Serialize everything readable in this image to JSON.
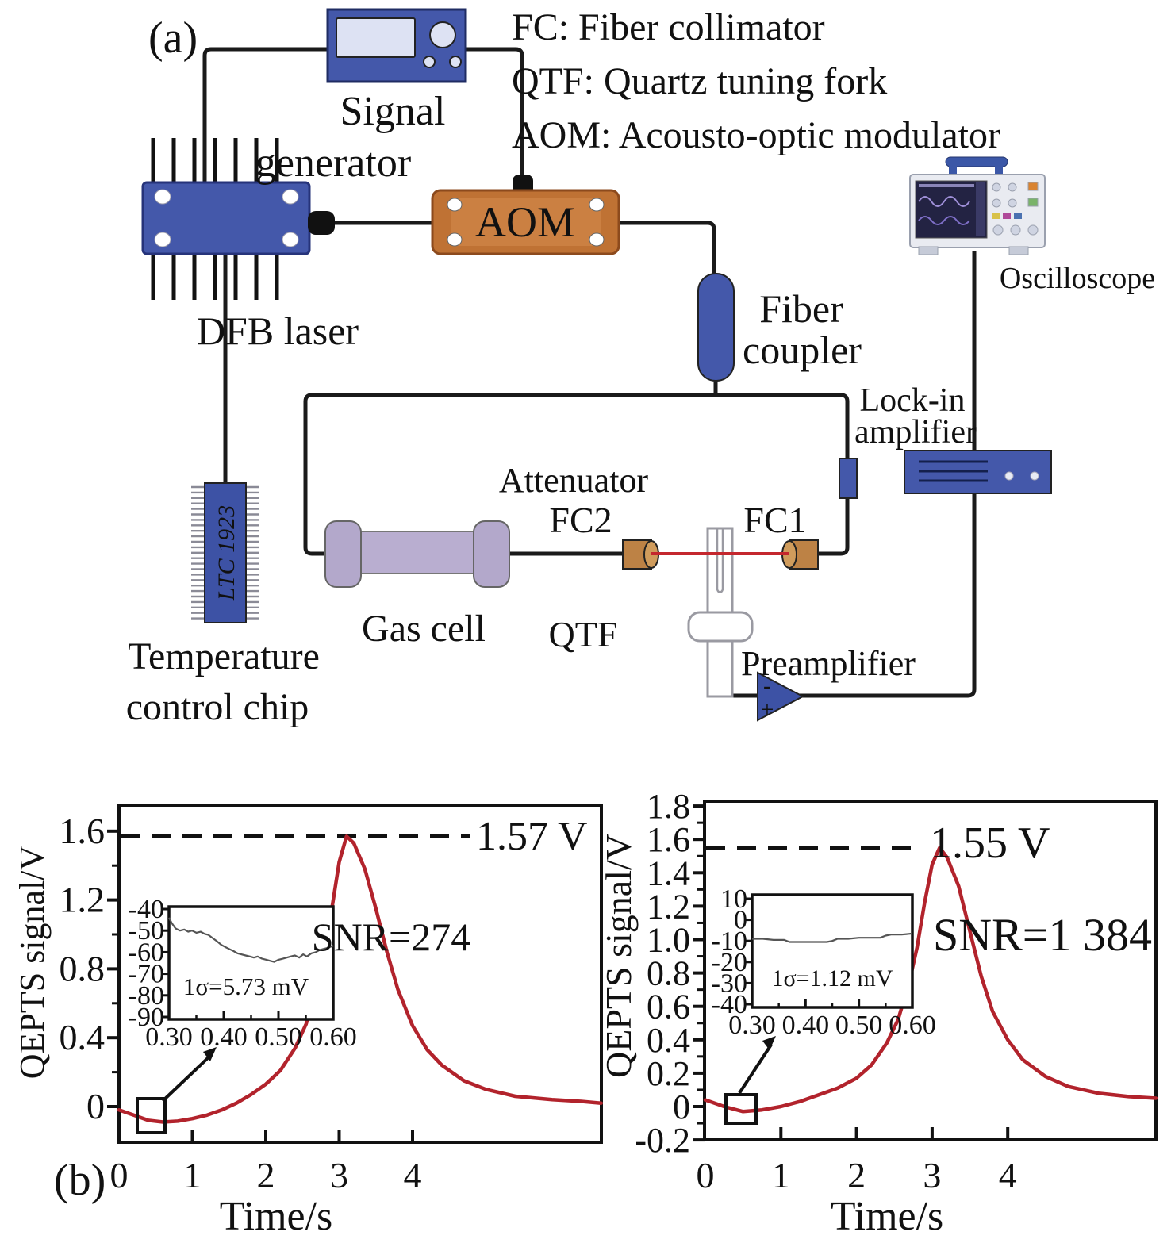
{
  "figure": {
    "panel_a": "(a)",
    "panel_b": "(b)"
  },
  "legend": {
    "lines": [
      "FC: Fiber collimator",
      "QTF: Quartz tuning fork",
      "AOM: Acousto-optic modulator"
    ]
  },
  "diagram": {
    "labels": {
      "signal_generator_1": "Signal",
      "signal_generator_2": "generator",
      "dfb_laser": "DFB laser",
      "aom": "AOM",
      "fiber_coupler_1": "Fiber",
      "fiber_coupler_2": "coupler",
      "oscilloscope": "Oscilloscope",
      "lock_in_1": "Lock-in",
      "lock_in_2": "amplifier",
      "attenuator": "Attenuator",
      "fc2": "FC2",
      "fc1": "FC1",
      "qtf": "QTF",
      "gas_cell": "Gas cell",
      "preamplifier": "Preamplifier",
      "temperature_1": "Temperature",
      "temperature_2": "control chip",
      "chip_text": "LTC 1923",
      "preamp_minus": "-",
      "preamp_plus": "+"
    },
    "colors": {
      "device_blue": "#4458aa",
      "aom_orange": "#bf7234",
      "gas_lavender": "#b6abce",
      "collimator_brown": "#bd8245",
      "beam_red": "#c4272e",
      "wire_black": "#1a1a1a"
    }
  },
  "chart_data": [
    {
      "type": "line",
      "title": "",
      "xlabel": "Time/s",
      "ylabel": "QEPTS signal/V",
      "xlim": [
        0,
        6.57
      ],
      "ylim": [
        -0.21,
        1.75
      ],
      "xticks": [
        0,
        1,
        2,
        3,
        4
      ],
      "xtick_labels": [
        "0",
        "1",
        "2",
        "3",
        "4"
      ],
      "yticks": [
        0,
        0.4,
        0.8,
        1.2,
        1.6
      ],
      "ytick_labels": [
        "0",
        "0.4",
        "0.8",
        "1.2",
        "1.6"
      ],
      "y_minor": [
        0.2,
        0.6,
        1.0,
        1.4
      ],
      "grid": false,
      "peak_value": 1.57,
      "peak_label": "1.57 V",
      "snr": "SNR=274",
      "series": [
        {
          "name": "QEPTS signal",
          "color": "#b2232c",
          "x": [
            0,
            0.2,
            0.4,
            0.6,
            0.8,
            1.0,
            1.2,
            1.4,
            1.6,
            1.8,
            2.0,
            2.2,
            2.4,
            2.55,
            2.7,
            2.8,
            2.9,
            3.0,
            3.1,
            3.2,
            3.35,
            3.5,
            3.65,
            3.8,
            4.0,
            4.2,
            4.4,
            4.7,
            5.0,
            5.4,
            5.9,
            6.3,
            6.57
          ],
          "y": [
            -0.02,
            -0.05,
            -0.08,
            -0.09,
            -0.085,
            -0.07,
            -0.05,
            -0.02,
            0.02,
            0.07,
            0.13,
            0.21,
            0.34,
            0.48,
            0.7,
            0.9,
            1.15,
            1.42,
            1.57,
            1.53,
            1.38,
            1.15,
            0.9,
            0.68,
            0.47,
            0.33,
            0.24,
            0.15,
            0.1,
            0.06,
            0.04,
            0.03,
            0.02
          ]
        }
      ],
      "inset": {
        "xlim": [
          0.3,
          0.6
        ],
        "ylim": [
          -90,
          -40
        ],
        "xticks": [
          0.3,
          0.4,
          0.5,
          0.6
        ],
        "xtick_labels": [
          "0.30",
          "0.40",
          "0.50",
          "0.60"
        ],
        "x_minor": [
          0.35,
          0.45,
          0.55
        ],
        "yticks": [
          -40,
          -50,
          -60,
          -70,
          -80,
          -90
        ],
        "ytick_labels": [
          "-40",
          "-50",
          "-60",
          "-70",
          "-80",
          "-90"
        ],
        "sigma_text": "1σ=5.73 mV",
        "x": [
          0.3,
          0.305,
          0.312,
          0.32,
          0.328,
          0.335,
          0.342,
          0.35,
          0.358,
          0.365,
          0.372,
          0.38,
          0.388,
          0.395,
          0.402,
          0.41,
          0.418,
          0.425,
          0.432,
          0.44,
          0.448,
          0.455,
          0.462,
          0.47,
          0.478,
          0.485,
          0.492,
          0.5,
          0.508,
          0.515,
          0.522,
          0.53,
          0.538,
          0.545,
          0.552,
          0.56,
          0.568,
          0.575,
          0.582,
          0.59,
          0.6
        ],
        "y": [
          -44,
          -46.5,
          -49,
          -50,
          -49.5,
          -50.5,
          -50,
          -51,
          -50.5,
          -51.5,
          -52,
          -53.5,
          -55,
          -56.5,
          -57.5,
          -58.5,
          -59.5,
          -60.5,
          -61,
          -61.5,
          -62,
          -62.5,
          -62,
          -63,
          -63.5,
          -64,
          -64.5,
          -63.5,
          -63,
          -62.5,
          -62,
          -61.5,
          -62.5,
          -61,
          -62,
          -60.5,
          -60,
          -59,
          -58.5,
          -58,
          -57
        ]
      }
    },
    {
      "type": "line",
      "title": "",
      "xlabel": "Time/s",
      "ylabel": "QEPTS signal/V",
      "xlim": [
        0,
        5.96
      ],
      "ylim": [
        -0.2,
        1.83
      ],
      "xticks": [
        0,
        1,
        2,
        3,
        4
      ],
      "xtick_labels": [
        "0",
        "1",
        "2",
        "3",
        "4"
      ],
      "yticks": [
        -0.2,
        0,
        0.2,
        0.4,
        0.6,
        0.8,
        1.0,
        1.2,
        1.4,
        1.6,
        1.8
      ],
      "ytick_labels": [
        "-0.2",
        "0",
        "0.2",
        "0.4",
        "0.6",
        "0.8",
        "1.0",
        "1.2",
        "1.4",
        "1.6",
        "1.8"
      ],
      "y_minor": [
        -0.1,
        0.1,
        0.3,
        0.5,
        0.7,
        0.9,
        1.1,
        1.3,
        1.5,
        1.7
      ],
      "grid": false,
      "peak_value": 1.55,
      "peak_label": "1.55 V",
      "snr": "SNR=1 384",
      "series": [
        {
          "name": "QEPTS signal",
          "color": "#b2232c",
          "x": [
            0,
            0.25,
            0.5,
            0.75,
            1.0,
            1.25,
            1.5,
            1.75,
            2.0,
            2.2,
            2.4,
            2.55,
            2.7,
            2.8,
            2.9,
            3.0,
            3.1,
            3.2,
            3.35,
            3.5,
            3.65,
            3.8,
            4.0,
            4.2,
            4.5,
            4.8,
            5.2,
            5.6,
            5.96
          ],
          "y": [
            0.04,
            0.0,
            -0.03,
            -0.02,
            0.0,
            0.03,
            0.07,
            0.11,
            0.17,
            0.25,
            0.38,
            0.52,
            0.75,
            0.95,
            1.22,
            1.45,
            1.55,
            1.49,
            1.32,
            1.05,
            0.78,
            0.57,
            0.4,
            0.28,
            0.18,
            0.12,
            0.08,
            0.06,
            0.05
          ]
        }
      ],
      "inset": {
        "xlim": [
          0.3,
          0.6
        ],
        "ylim": [
          -40,
          10
        ],
        "xticks": [
          0.3,
          0.4,
          0.5,
          0.6
        ],
        "xtick_labels": [
          "0.30",
          "0.40",
          "0.50",
          "0.60"
        ],
        "x_minor": [
          0.35,
          0.45,
          0.55
        ],
        "yticks": [
          10,
          0,
          -10,
          -20,
          -30,
          -40
        ],
        "ytick_labels": [
          "10",
          "0",
          "-10",
          "-20",
          "-30",
          "-40"
        ],
        "sigma_text": "1σ=1.12 mV",
        "x": [
          0.3,
          0.32,
          0.34,
          0.36,
          0.37,
          0.38,
          0.4,
          0.42,
          0.44,
          0.45,
          0.46,
          0.48,
          0.5,
          0.52,
          0.54,
          0.55,
          0.56,
          0.58,
          0.6
        ],
        "y": [
          -9,
          -9,
          -9.5,
          -9.5,
          -10.5,
          -10.5,
          -10.5,
          -10.5,
          -10.5,
          -10,
          -9,
          -9,
          -8.5,
          -8.5,
          -8.5,
          -7.5,
          -7,
          -7,
          -6.5
        ]
      }
    }
  ]
}
